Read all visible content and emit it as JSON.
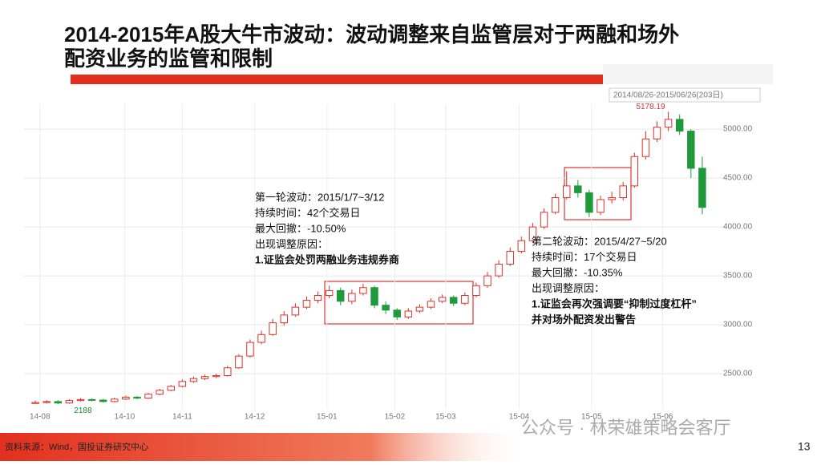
{
  "header": {
    "title": [
      "2014-2015年A股大牛市波动：波动调整来自监管层对于两融和场外",
      "配资业务的监管和限制"
    ]
  },
  "chart_data": {
    "type": "candlestick",
    "range_label": "2014/08/26-2015/06/26(203日)",
    "up_color": "#e0302a",
    "down_color": "#1f9a3a",
    "xlim": [
      -1,
      60
    ],
    "xticks": [
      {
        "value": 0.4,
        "label": "14-08"
      },
      {
        "value": 7.9,
        "label": "14-10"
      },
      {
        "value": 13,
        "label": "14-11"
      },
      {
        "value": 19.4,
        "label": "14-12"
      },
      {
        "value": 25.8,
        "label": "15-01"
      },
      {
        "value": 31.8,
        "label": "15-02"
      },
      {
        "value": 36.3,
        "label": "15-03"
      },
      {
        "value": 42.8,
        "label": "15-04"
      },
      {
        "value": 49.2,
        "label": "15-05"
      },
      {
        "value": 55.5,
        "label": "15-06"
      }
    ],
    "ylim": [
      2140,
      5255
    ],
    "yticks": [
      {
        "value": 2500,
        "label": "2500.00"
      },
      {
        "value": 3000,
        "label": "3000.00"
      },
      {
        "value": 3500,
        "label": "3500.00"
      },
      {
        "value": 4000,
        "label": "4000.00"
      },
      {
        "value": 4500,
        "label": "4500.00"
      },
      {
        "value": 5000,
        "label": "5000.00"
      }
    ],
    "grid": true,
    "open": [
      2195,
      2205,
      2215,
      2200,
      2225,
      2235,
      2230,
      2215,
      2240,
      2260,
      2250,
      2290,
      2330,
      2370,
      2420,
      2450,
      2470,
      2480,
      2560,
      2680,
      2820,
      2900,
      3020,
      3100,
      3180,
      3250,
      3300,
      3350,
      3240,
      3320,
      3380,
      3200,
      3150,
      3080,
      3140,
      3180,
      3240,
      3280,
      3220,
      3300,
      3400,
      3500,
      3620,
      3750,
      3860,
      4000,
      4150,
      4300,
      4420,
      4350,
      4150,
      4280,
      4300,
      4420,
      4720,
      4900,
      5020,
      5100,
      4980,
      4600
    ],
    "close": [
      2205,
      2215,
      2200,
      2225,
      2235,
      2230,
      2215,
      2240,
      2260,
      2250,
      2290,
      2330,
      2370,
      2420,
      2450,
      2470,
      2480,
      2560,
      2680,
      2820,
      2900,
      3020,
      3100,
      3180,
      3250,
      3300,
      3350,
      3240,
      3320,
      3380,
      3200,
      3150,
      3080,
      3140,
      3180,
      3240,
      3280,
      3220,
      3300,
      3400,
      3500,
      3620,
      3750,
      3860,
      4000,
      4150,
      4300,
      4420,
      4350,
      4150,
      4280,
      4300,
      4420,
      4720,
      4900,
      5020,
      5100,
      4980,
      4600,
      4200
    ],
    "high": [
      2225,
      2230,
      2228,
      2240,
      2250,
      2248,
      2242,
      2255,
      2275,
      2272,
      2305,
      2345,
      2385,
      2440,
      2470,
      2490,
      2500,
      2580,
      2700,
      2850,
      2940,
      3060,
      3140,
      3220,
      3290,
      3340,
      3400,
      3380,
      3360,
      3420,
      3400,
      3240,
      3170,
      3170,
      3210,
      3270,
      3310,
      3300,
      3330,
      3430,
      3540,
      3660,
      3790,
      3900,
      4040,
      4190,
      4340,
      4570,
      4480,
      4380,
      4320,
      4360,
      4460,
      4760,
      4980,
      5080,
      5178.19,
      5150,
      5000,
      4720
    ],
    "low": [
      2193.26,
      2195,
      2188,
      2192,
      2215,
      2218,
      2205,
      2208,
      2230,
      2238,
      2242,
      2280,
      2320,
      2360,
      2405,
      2435,
      2455,
      2470,
      2550,
      2665,
      2800,
      2885,
      2990,
      3080,
      3160,
      3220,
      3270,
      3200,
      3210,
      3300,
      3170,
      3110,
      3050,
      3060,
      3120,
      3160,
      3220,
      3190,
      3200,
      3280,
      3380,
      3480,
      3600,
      3730,
      3840,
      3980,
      4130,
      4280,
      4300,
      4100,
      4120,
      4240,
      4270,
      4400,
      4690,
      4870,
      4980,
      4940,
      4500,
      4130
    ],
    "annotations": [
      {
        "lines": [
          "第一轮波动：2015/1/7~3/12",
          "持续时间：42个交易日",
          "最大回撤：-10.50%",
          "出现调整原因：",
          "1.证监会处罚两融业务违规券商"
        ]
      },
      {
        "lines": [
          "第二轮波动：2015/4/27~5/20",
          "持续时间：17个交易日",
          "最大回撤：-10.35%",
          "出现调整原因：",
          "1.证监会再次强调要“抑制过度杠杆”",
          "并对场外配资发出警告"
        ]
      }
    ]
  },
  "footer": {
    "source": "资料来源：Wind，国投证券研究中心",
    "watermark": "公众号 · 林荣雄策略会客厅",
    "page": "13"
  }
}
